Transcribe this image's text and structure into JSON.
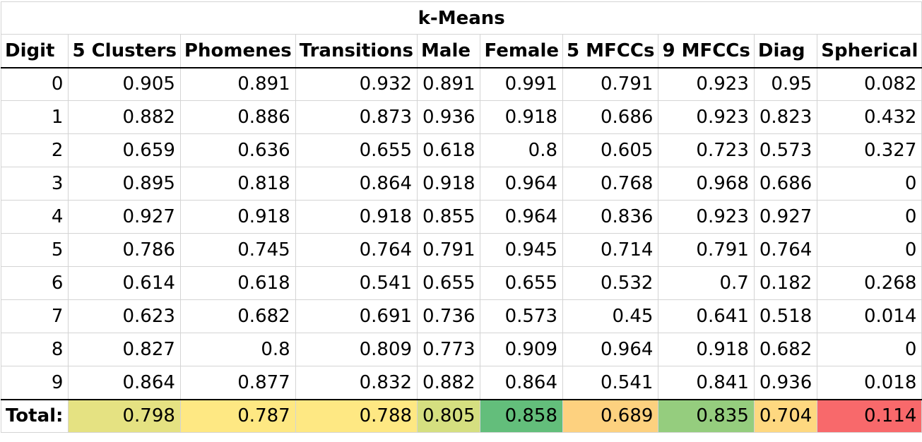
{
  "title": "k-Means",
  "headers": [
    "Digit",
    "5 Clusters",
    "Phomenes",
    "Transitions",
    "Male",
    "Female",
    "5 MFCCs",
    "9 MFCCs",
    "Diag",
    "Spherical"
  ],
  "rows": [
    [
      "0",
      "0.905",
      "0.891",
      "0.932",
      "0.891",
      "0.991",
      "0.791",
      "0.923",
      "0.95",
      "0.082"
    ],
    [
      "1",
      "0.882",
      "0.886",
      "0.873",
      "0.936",
      "0.918",
      "0.686",
      "0.923",
      "0.823",
      "0.432"
    ],
    [
      "2",
      "0.659",
      "0.636",
      "0.655",
      "0.618",
      "0.8",
      "0.605",
      "0.723",
      "0.573",
      "0.327"
    ],
    [
      "3",
      "0.895",
      "0.818",
      "0.864",
      "0.918",
      "0.964",
      "0.768",
      "0.968",
      "0.686",
      "0"
    ],
    [
      "4",
      "0.927",
      "0.918",
      "0.918",
      "0.855",
      "0.964",
      "0.836",
      "0.923",
      "0.927",
      "0"
    ],
    [
      "5",
      "0.786",
      "0.745",
      "0.764",
      "0.791",
      "0.945",
      "0.714",
      "0.791",
      "0.764",
      "0"
    ],
    [
      "6",
      "0.614",
      "0.618",
      "0.541",
      "0.655",
      "0.655",
      "0.532",
      "0.7",
      "0.182",
      "0.268"
    ],
    [
      "7",
      "0.623",
      "0.682",
      "0.691",
      "0.736",
      "0.573",
      "0.45",
      "0.641",
      "0.518",
      "0.014"
    ],
    [
      "8",
      "0.827",
      "0.8",
      "0.809",
      "0.773",
      "0.909",
      "0.964",
      "0.918",
      "0.682",
      "0"
    ],
    [
      "9",
      "0.864",
      "0.877",
      "0.832",
      "0.882",
      "0.864",
      "0.541",
      "0.841",
      "0.936",
      "0.018"
    ]
  ],
  "total": {
    "label": "Total:",
    "values": [
      "0.798",
      "0.787",
      "0.788",
      "0.805",
      "0.858",
      "0.689",
      "0.835",
      "0.704",
      "0.114"
    ],
    "colors": [
      "#e5e282",
      "#fee883",
      "#fee883",
      "#d5df80",
      "#63be7b",
      "#fdd17f",
      "#95cd7e",
      "#fed880",
      "#f8696b"
    ]
  }
}
